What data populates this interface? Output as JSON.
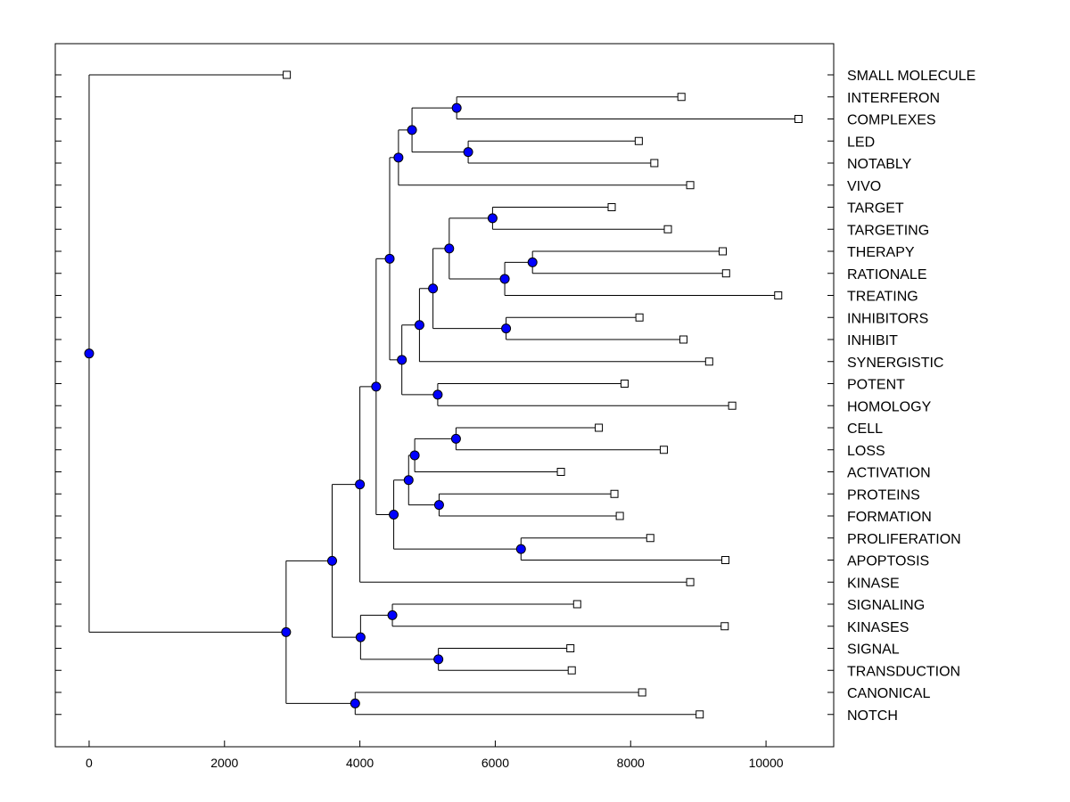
{
  "chart_data": {
    "type": "dendrogram",
    "xlim": [
      -500,
      11000
    ],
    "x_ticks": [
      0,
      2000,
      4000,
      6000,
      8000,
      10000
    ],
    "x_tick_labels": [
      "0",
      "2000",
      "4000",
      "6000",
      "8000",
      "10000"
    ],
    "colors": {
      "node_fill": "#0000ff",
      "line": "#000000",
      "leaf_fill": "#ffffff"
    },
    "leaves": [
      {
        "label": "SMALL MOLECULE",
        "x": 2920
      },
      {
        "label": "INTERFERON",
        "x": 8750
      },
      {
        "label": "COMPLEXES",
        "x": 10480
      },
      {
        "label": "LED",
        "x": 8120
      },
      {
        "label": "NOTABLY",
        "x": 8350
      },
      {
        "label": "VIVO",
        "x": 8880
      },
      {
        "label": "TARGET",
        "x": 7720
      },
      {
        "label": "TARGETING",
        "x": 8550
      },
      {
        "label": "THERAPY",
        "x": 9360
      },
      {
        "label": "RATIONALE",
        "x": 9410
      },
      {
        "label": "TREATING",
        "x": 10180
      },
      {
        "label": "INHIBITORS",
        "x": 8130
      },
      {
        "label": "INHIBIT",
        "x": 8780
      },
      {
        "label": "SYNERGISTIC",
        "x": 9160
      },
      {
        "label": "POTENT",
        "x": 7910
      },
      {
        "label": "HOMOLOGY",
        "x": 9500
      },
      {
        "label": "CELL",
        "x": 7530
      },
      {
        "label": "LOSS",
        "x": 8490
      },
      {
        "label": "ACTIVATION",
        "x": 6970
      },
      {
        "label": "PROTEINS",
        "x": 7760
      },
      {
        "label": "FORMATION",
        "x": 7840
      },
      {
        "label": "PROLIFERATION",
        "x": 8290
      },
      {
        "label": "APOPTOSIS",
        "x": 9400
      },
      {
        "label": "KINASE",
        "x": 8880
      },
      {
        "label": "SIGNALING",
        "x": 7210
      },
      {
        "label": "KINASES",
        "x": 9390
      },
      {
        "label": "SIGNAL",
        "x": 7110
      },
      {
        "label": "TRANSDUCTION",
        "x": 7130
      },
      {
        "label": "CANONICAL",
        "x": 8170
      },
      {
        "label": "NOTCH",
        "x": 9020
      }
    ],
    "merges": [
      {
        "id": "m1",
        "x": 5430,
        "children": [
          "l1",
          "l2"
        ]
      },
      {
        "id": "m2",
        "x": 5600,
        "children": [
          "l3",
          "l4"
        ]
      },
      {
        "id": "m3",
        "x": 4770,
        "children": [
          "m1",
          "m2"
        ]
      },
      {
        "id": "m4",
        "x": 4570,
        "children": [
          "m3",
          "l5"
        ]
      },
      {
        "id": "m5",
        "x": 5960,
        "children": [
          "l6",
          "l7"
        ]
      },
      {
        "id": "m6",
        "x": 6550,
        "children": [
          "l8",
          "l9"
        ]
      },
      {
        "id": "m7",
        "x": 6140,
        "children": [
          "m6",
          "l10"
        ]
      },
      {
        "id": "m8",
        "x": 5320,
        "children": [
          "m5",
          "m7"
        ]
      },
      {
        "id": "m9",
        "x": 6160,
        "children": [
          "l11",
          "l12"
        ]
      },
      {
        "id": "m10",
        "x": 5080,
        "children": [
          "m8",
          "m9"
        ]
      },
      {
        "id": "m11",
        "x": 4880,
        "children": [
          "m10",
          "l13"
        ]
      },
      {
        "id": "m12",
        "x": 5150,
        "children": [
          "l14",
          "l15"
        ]
      },
      {
        "id": "m13",
        "x": 4620,
        "children": [
          "m11",
          "m12"
        ]
      },
      {
        "id": "m14",
        "x": 4440,
        "children": [
          "m4",
          "m13"
        ]
      },
      {
        "id": "m15",
        "x": 5420,
        "children": [
          "l16",
          "l17"
        ]
      },
      {
        "id": "m16",
        "x": 4810,
        "children": [
          "m15",
          "l18"
        ]
      },
      {
        "id": "m17",
        "x": 5170,
        "children": [
          "l19",
          "l20"
        ]
      },
      {
        "id": "m18",
        "x": 4720,
        "children": [
          "m16",
          "m17"
        ]
      },
      {
        "id": "m19",
        "x": 6380,
        "children": [
          "l21",
          "l22"
        ]
      },
      {
        "id": "m20",
        "x": 4500,
        "children": [
          "m18",
          "m19"
        ]
      },
      {
        "id": "m21",
        "x": 4240,
        "children": [
          "m14",
          "m20"
        ]
      },
      {
        "id": "m22",
        "x": 4000,
        "children": [
          "m21",
          "l23"
        ]
      },
      {
        "id": "m23",
        "x": 4480,
        "children": [
          "l24",
          "l25"
        ]
      },
      {
        "id": "m24",
        "x": 5160,
        "children": [
          "l26",
          "l27"
        ]
      },
      {
        "id": "m25",
        "x": 4010,
        "children": [
          "m23",
          "m24"
        ]
      },
      {
        "id": "m26",
        "x": 3590,
        "children": [
          "m22",
          "m25"
        ]
      },
      {
        "id": "m27",
        "x": 3930,
        "children": [
          "l28",
          "l29"
        ]
      },
      {
        "id": "m28",
        "x": 2910,
        "children": [
          "m26",
          "m27"
        ]
      },
      {
        "id": "m29",
        "x": 0,
        "children": [
          "l0",
          "m28"
        ]
      }
    ]
  }
}
